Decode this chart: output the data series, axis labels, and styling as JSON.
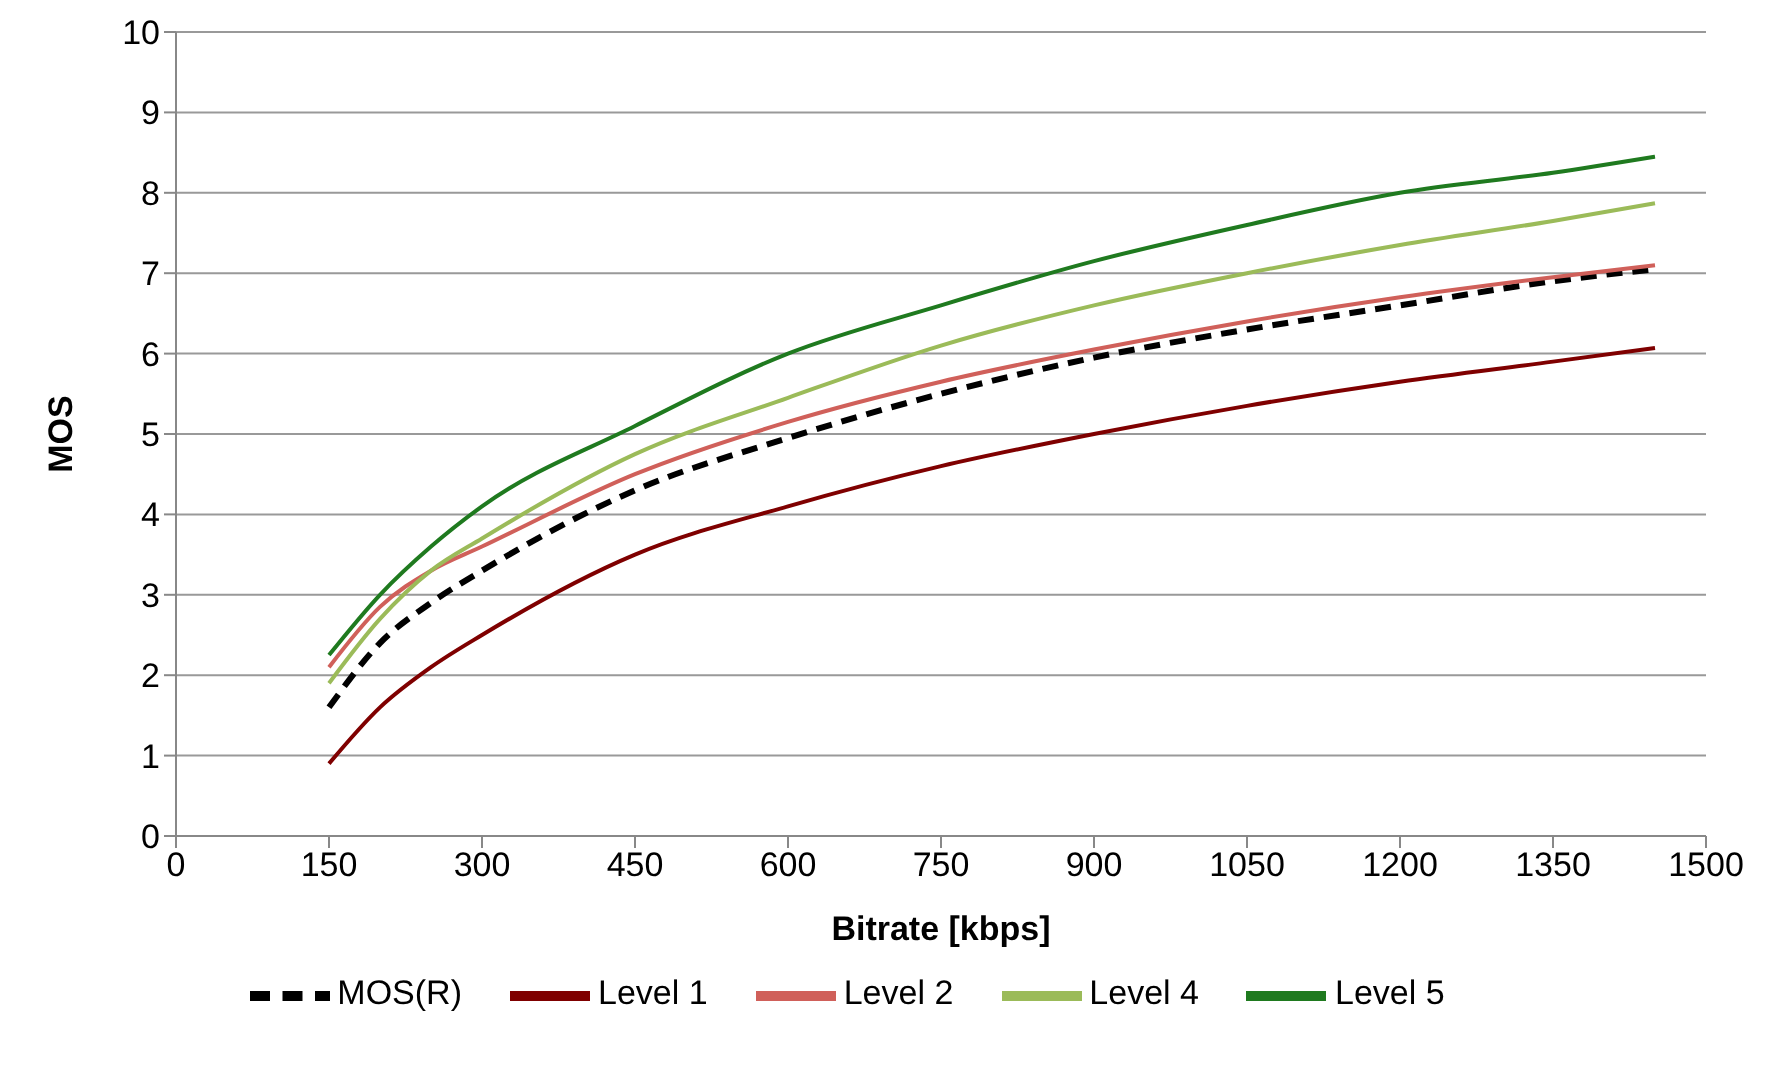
{
  "chart_data": {
    "type": "line",
    "xlabel": "Bitrate [kbps]",
    "ylabel": "MOS",
    "x": [
      150,
      200,
      250,
      300,
      450,
      600,
      750,
      900,
      1050,
      1200,
      1350,
      1450
    ],
    "xlim": [
      0,
      1500
    ],
    "xticks": [
      0,
      150,
      300,
      450,
      600,
      750,
      900,
      1050,
      1200,
      1350,
      1500
    ],
    "ylim": [
      0,
      10
    ],
    "yticks": [
      0,
      1,
      2,
      3,
      4,
      5,
      6,
      7,
      8,
      9,
      10
    ],
    "grid": "y",
    "legend": "bottom",
    "marker": "none",
    "series": [
      {
        "name": "MOS(R)",
        "color": "#000000",
        "line_style": "dashed",
        "values": [
          1.6,
          2.4,
          2.9,
          3.3,
          4.3,
          4.95,
          5.5,
          5.95,
          6.3,
          6.6,
          6.9,
          7.05
        ]
      },
      {
        "name": "Level 1",
        "color": "#7f0000",
        "line_style": "solid",
        "values": [
          0.9,
          1.6,
          2.1,
          2.5,
          3.5,
          4.1,
          4.6,
          5.0,
          5.35,
          5.65,
          5.9,
          6.07
        ]
      },
      {
        "name": "Level 2",
        "color": "#d0605a",
        "line_style": "solid",
        "values": [
          2.1,
          2.85,
          3.3,
          3.6,
          4.5,
          5.15,
          5.65,
          6.05,
          6.4,
          6.7,
          6.95,
          7.1
        ]
      },
      {
        "name": "Level 4",
        "color": "#9bbb59",
        "line_style": "solid",
        "values": [
          1.9,
          2.7,
          3.3,
          3.7,
          4.75,
          5.45,
          6.1,
          6.6,
          7.0,
          7.35,
          7.65,
          7.87
        ]
      },
      {
        "name": "Level 5",
        "color": "#1f7a1f",
        "line_style": "solid",
        "values": [
          2.25,
          3.0,
          3.6,
          4.1,
          5.1,
          6.0,
          6.6,
          7.15,
          7.6,
          8.0,
          8.25,
          8.45
        ]
      }
    ]
  }
}
